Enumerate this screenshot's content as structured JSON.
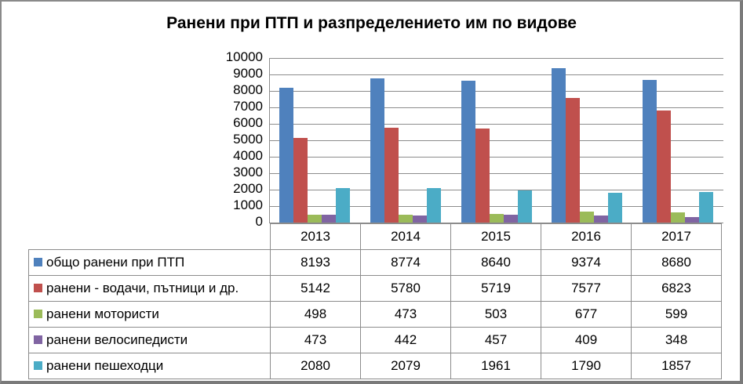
{
  "chart_data": {
    "type": "bar",
    "title": "Ранени при ПТП и разпределението им по видове",
    "xlabel": "",
    "ylabel": "",
    "ylim": [
      0,
      10000
    ],
    "yticks": [
      0,
      1000,
      2000,
      3000,
      4000,
      5000,
      6000,
      7000,
      8000,
      9000,
      10000
    ],
    "grid": true,
    "legend_position": "data-table",
    "categories": [
      "2013",
      "2014",
      "2015",
      "2016",
      "2017"
    ],
    "series": [
      {
        "name": "общо ранени при ПТП",
        "color": "#4f81bd",
        "values": [
          8193,
          8774,
          8640,
          9374,
          8680
        ]
      },
      {
        "name": "ранени - водачи, пътници и др.",
        "color": "#c0504d",
        "values": [
          5142,
          5780,
          5719,
          7577,
          6823
        ]
      },
      {
        "name": "ранени мотористи",
        "color": "#9bbb59",
        "values": [
          498,
          473,
          503,
          677,
          599
        ]
      },
      {
        "name": "ранени велосипедисти",
        "color": "#8064a2",
        "values": [
          473,
          442,
          457,
          409,
          348
        ]
      },
      {
        "name": "ранени пешеходци",
        "color": "#4bacc6",
        "values": [
          2080,
          2079,
          1961,
          1790,
          1857
        ]
      }
    ]
  }
}
